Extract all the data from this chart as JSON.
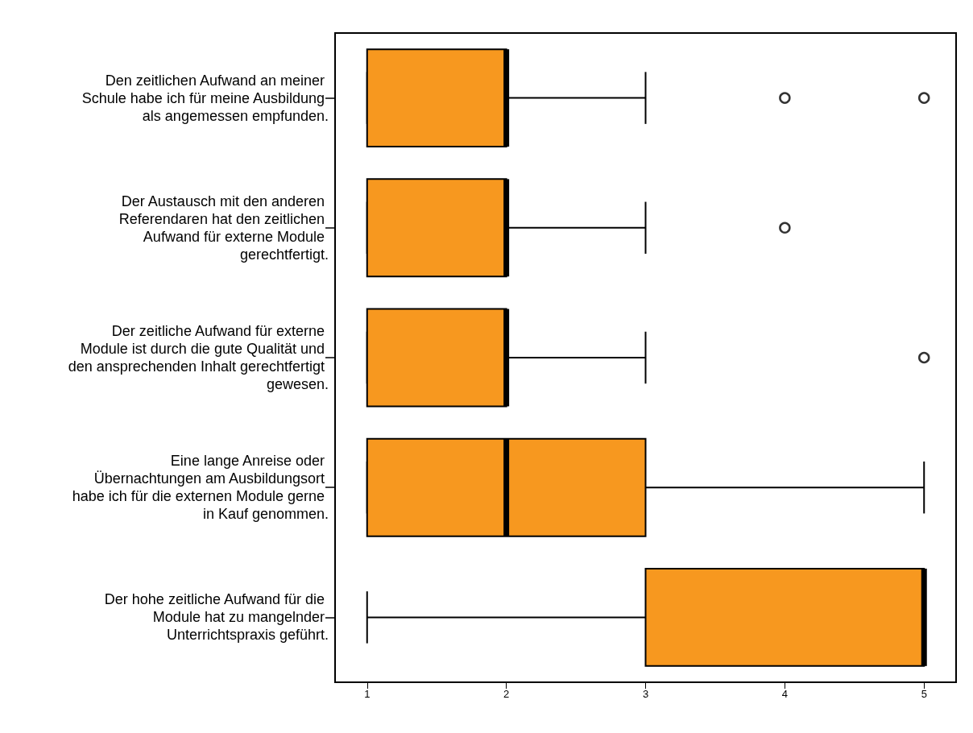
{
  "chart_data": {
    "type": "box",
    "orientation": "horizontal",
    "color": "#f7981f",
    "marker": "circle",
    "categories": [
      "Den zeitlichen Aufwand an meiner Schule habe ich für meine Ausbildung als angemessen empfunden.",
      "Der Austausch mit den anderen Referendaren hat den zeitlichen Aufwand für externe Module gerechtfertigt.",
      "Der zeitliche Aufwand für externe Module ist durch die gute Qualität und den ansprechenden Inhalt gerechtfertigt gewesen.",
      "Eine lange Anreise oder Übernachtungen am Ausbildungsort habe ich für die externen Module gerne in Kauf genommen.",
      "Der hohe zeitliche Aufwand für die Module hat zu mangelnder Unterrichtspraxis geführt."
    ],
    "boxes": [
      {
        "low": 1,
        "q1": 1,
        "median": 2,
        "q3": 2,
        "high": 3,
        "outliers": [
          4,
          5
        ]
      },
      {
        "low": 1,
        "q1": 1,
        "median": 2,
        "q3": 2,
        "high": 3,
        "outliers": [
          4
        ]
      },
      {
        "low": 1,
        "q1": 1,
        "median": 2,
        "q3": 2,
        "high": 3,
        "outliers": [
          5
        ]
      },
      {
        "low": 1,
        "q1": 1,
        "median": 2,
        "q3": 3,
        "high": 5
      },
      {
        "low": 1,
        "q1": 3,
        "median": 5,
        "q3": 5,
        "high": 5
      }
    ],
    "xlim": [
      0.77,
      5.23
    ],
    "xticks": [
      1,
      2,
      3,
      4,
      5
    ]
  }
}
